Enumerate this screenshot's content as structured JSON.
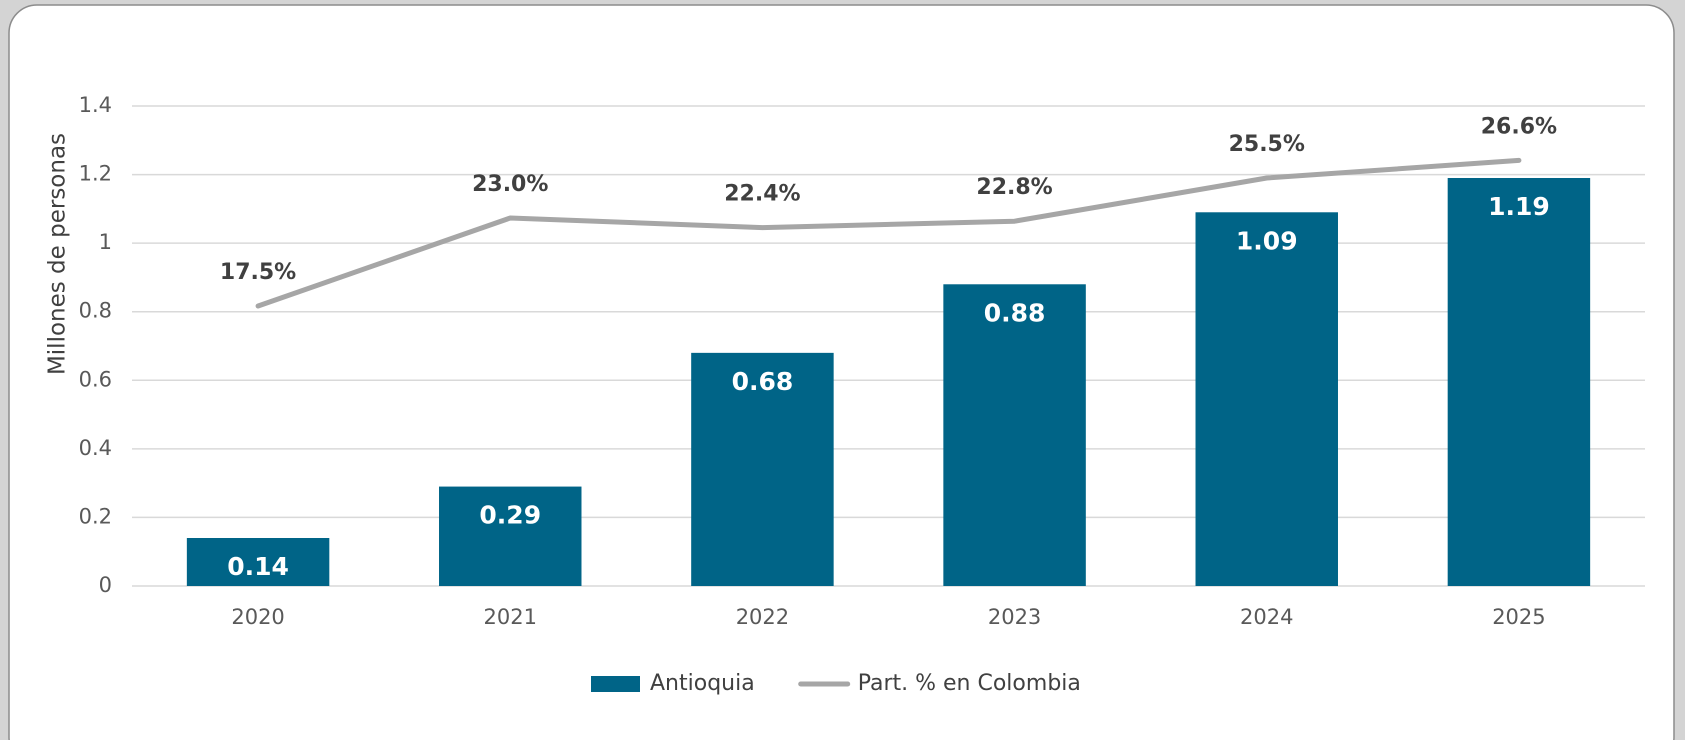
{
  "chart_data": {
    "type": "bar",
    "y_axis_label": "Millones de personas",
    "categories": [
      "2020",
      "2021",
      "2022",
      "2023",
      "2024",
      "2025"
    ],
    "series": [
      {
        "name": "Antioquia",
        "type": "bar",
        "color": "#006487",
        "values": [
          0.14,
          0.29,
          0.68,
          0.88,
          1.09,
          1.19
        ]
      },
      {
        "name": "Part. % en Colombia",
        "type": "line",
        "axis": "y2",
        "color": "#a6a6a6",
        "values": [
          17.5,
          23.0,
          22.4,
          22.8,
          25.5,
          26.6
        ],
        "value_labels": [
          "17.5%",
          "23.0%",
          "22.4%",
          "22.8%",
          "25.5%",
          "26.6%"
        ]
      }
    ],
    "ylim": [
      0,
      1.4
    ],
    "yticks": [
      0,
      0.2,
      0.4,
      0.6,
      0.8,
      1,
      1.2,
      1.4
    ],
    "y2lim": [
      0,
      30
    ],
    "grid": true,
    "legend": "bottom"
  }
}
